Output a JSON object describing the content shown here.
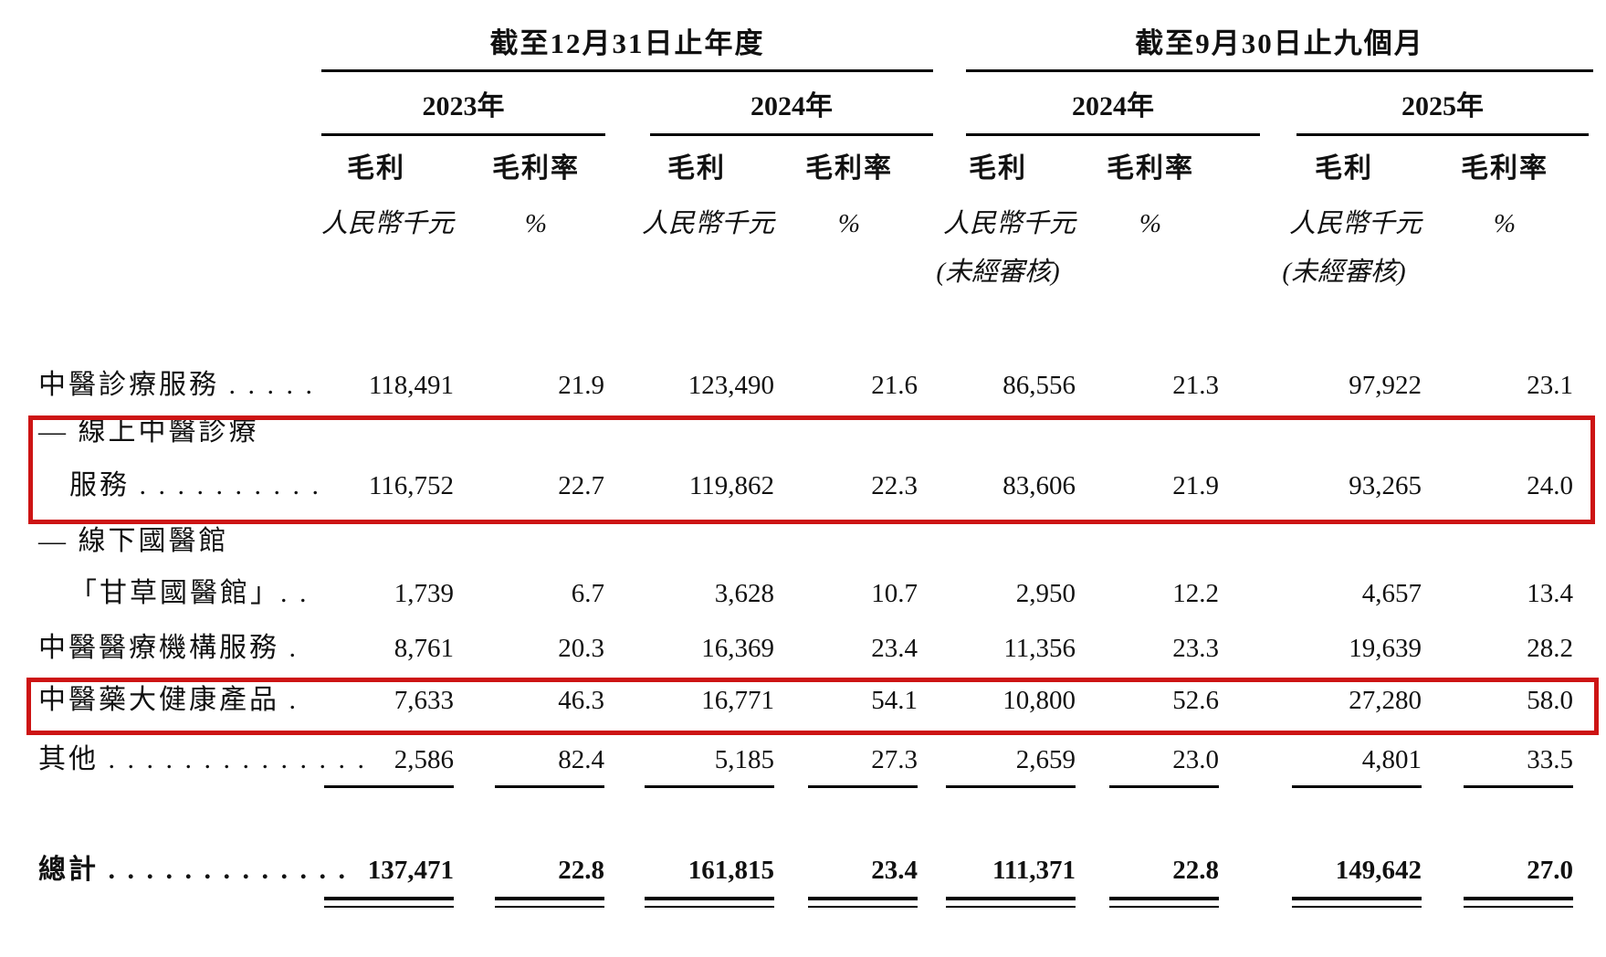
{
  "header": {
    "group1_title": "截至12月31日止年度",
    "group2_title": "截至9月30日止九個月",
    "year1": "2023年",
    "year2": "2024年",
    "year3": "2024年",
    "year4": "2025年",
    "gross_profit": "毛利",
    "gross_margin": "毛利率",
    "unit_thousands": "人民幣千元",
    "unit_percent": "%",
    "unaudited": "(未經審核)"
  },
  "rows": [
    {
      "label": "中醫診療服務 . . . . .",
      "v": [
        "118,491",
        "21.9",
        "123,490",
        "21.6",
        "86,556",
        "21.3",
        "97,922",
        "23.1"
      ]
    },
    {
      "label": "— 線上中醫診療",
      "v": []
    },
    {
      "label": "服務 . . . . . . . . . .",
      "v": [
        "116,752",
        "22.7",
        "119,862",
        "22.3",
        "83,606",
        "21.9",
        "93,265",
        "24.0"
      ]
    },
    {
      "label": "— 線下國醫館",
      "v": []
    },
    {
      "label": "「甘草國醫館」. .",
      "v": [
        "1,739",
        "6.7",
        "3,628",
        "10.7",
        "2,950",
        "12.2",
        "4,657",
        "13.4"
      ]
    },
    {
      "label": "中醫醫療機構服務 .",
      "v": [
        "8,761",
        "20.3",
        "16,369",
        "23.4",
        "11,356",
        "23.3",
        "19,639",
        "28.2"
      ]
    },
    {
      "label": "中醫藥大健康產品 .",
      "v": [
        "7,633",
        "46.3",
        "16,771",
        "54.1",
        "10,800",
        "52.6",
        "27,280",
        "58.0"
      ]
    },
    {
      "label": "其他 . . . . . . . . . . . . . .",
      "v": [
        "2,586",
        "82.4",
        "5,185",
        "27.3",
        "2,659",
        "23.0",
        "4,801",
        "33.5"
      ]
    },
    {
      "label": "總計 . . . . . . . . . . . . .",
      "v": [
        "137,471",
        "22.8",
        "161,815",
        "23.4",
        "111,371",
        "22.8",
        "149,642",
        "27.0"
      ]
    }
  ],
  "annotations": {
    "highlight_color": "#cd1414",
    "box1_target": "online-tcm-diagnosis-services-row",
    "box2_target": "tcm-health-products-row"
  }
}
